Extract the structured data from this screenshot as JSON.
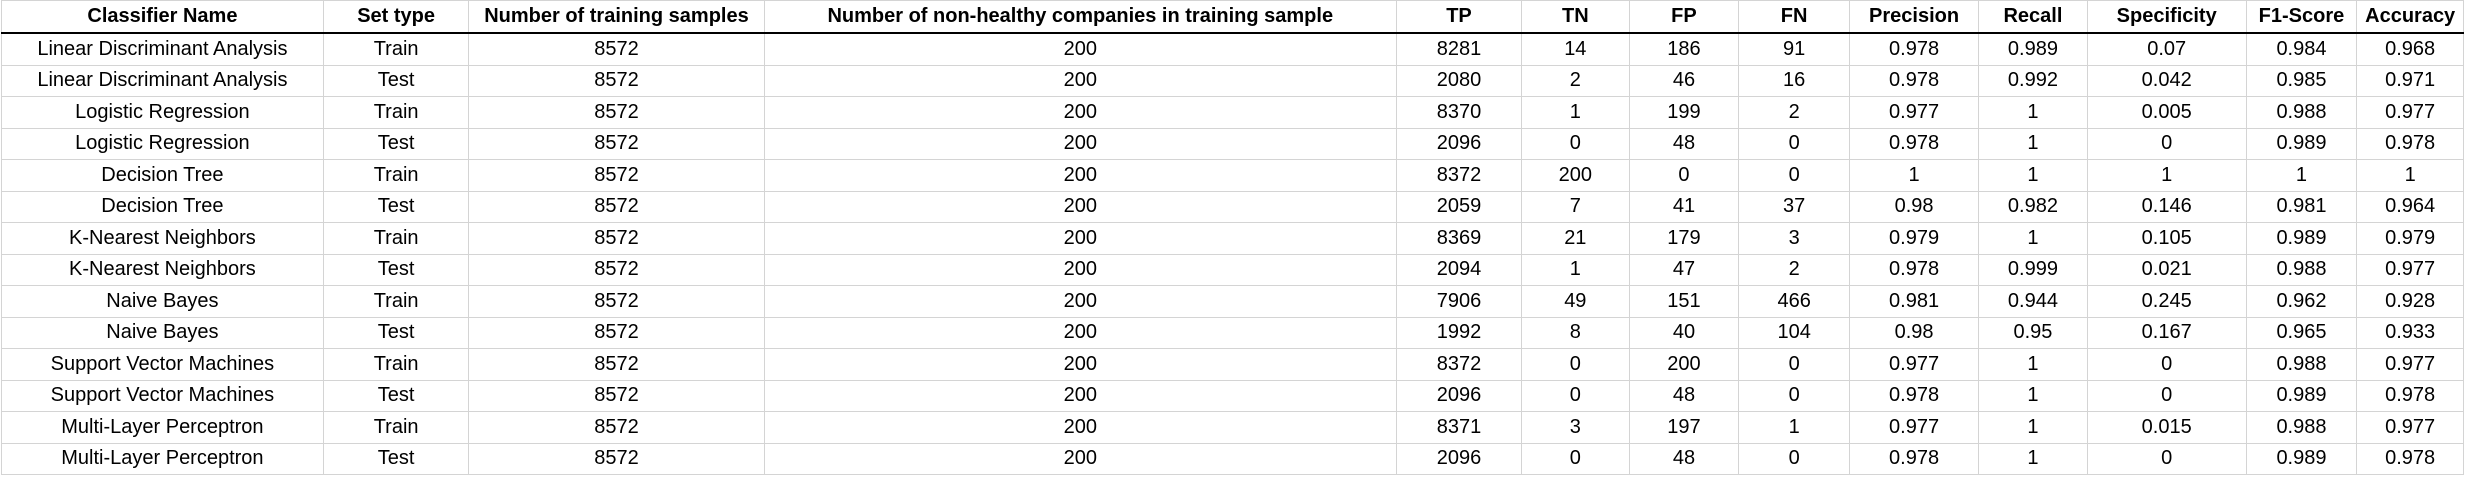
{
  "table": {
    "headers": [
      "Classifier Name",
      "Set type",
      "Number of training samples",
      "Number of non-healthy companies in training sample",
      "TP",
      "TN",
      "FP",
      "FN",
      "Precision",
      "Recall",
      "Specificity",
      "F1-Score",
      "Accuracy"
    ],
    "rows": [
      [
        "Linear Discriminant Analysis",
        "Train",
        "8572",
        "200",
        "8281",
        "14",
        "186",
        "91",
        "0.978",
        "0.989",
        "0.07",
        "0.984",
        "0.968"
      ],
      [
        "Linear Discriminant Analysis",
        "Test",
        "8572",
        "200",
        "2080",
        "2",
        "46",
        "16",
        "0.978",
        "0.992",
        "0.042",
        "0.985",
        "0.971"
      ],
      [
        "Logistic Regression",
        "Train",
        "8572",
        "200",
        "8370",
        "1",
        "199",
        "2",
        "0.977",
        "1",
        "0.005",
        "0.988",
        "0.977"
      ],
      [
        "Logistic Regression",
        "Test",
        "8572",
        "200",
        "2096",
        "0",
        "48",
        "0",
        "0.978",
        "1",
        "0",
        "0.989",
        "0.978"
      ],
      [
        "Decision Tree",
        "Train",
        "8572",
        "200",
        "8372",
        "200",
        "0",
        "0",
        "1",
        "1",
        "1",
        "1",
        "1"
      ],
      [
        "Decision Tree",
        "Test",
        "8572",
        "200",
        "2059",
        "7",
        "41",
        "37",
        "0.98",
        "0.982",
        "0.146",
        "0.981",
        "0.964"
      ],
      [
        "K-Nearest Neighbors",
        "Train",
        "8572",
        "200",
        "8369",
        "21",
        "179",
        "3",
        "0.979",
        "1",
        "0.105",
        "0.989",
        "0.979"
      ],
      [
        "K-Nearest Neighbors",
        "Test",
        "8572",
        "200",
        "2094",
        "1",
        "47",
        "2",
        "0.978",
        "0.999",
        "0.021",
        "0.988",
        "0.977"
      ],
      [
        "Naive Bayes",
        "Train",
        "8572",
        "200",
        "7906",
        "49",
        "151",
        "466",
        "0.981",
        "0.944",
        "0.245",
        "0.962",
        "0.928"
      ],
      [
        "Naive Bayes",
        "Test",
        "8572",
        "200",
        "1992",
        "8",
        "40",
        "104",
        "0.98",
        "0.95",
        "0.167",
        "0.965",
        "0.933"
      ],
      [
        "Support Vector Machines",
        "Train",
        "8572",
        "200",
        "8372",
        "0",
        "200",
        "0",
        "0.977",
        "1",
        "0",
        "0.988",
        "0.977"
      ],
      [
        "Support Vector Machines",
        "Test",
        "8572",
        "200",
        "2096",
        "0",
        "48",
        "0",
        "0.978",
        "1",
        "0",
        "0.989",
        "0.978"
      ],
      [
        "Multi-Layer Perceptron",
        "Train",
        "8572",
        "200",
        "8371",
        "3",
        "197",
        "1",
        "0.977",
        "1",
        "0.015",
        "0.988",
        "0.977"
      ],
      [
        "Multi-Layer Perceptron",
        "Test",
        "8572",
        "200",
        "2096",
        "0",
        "48",
        "0",
        "0.978",
        "1",
        "0",
        "0.989",
        "0.978"
      ]
    ]
  }
}
